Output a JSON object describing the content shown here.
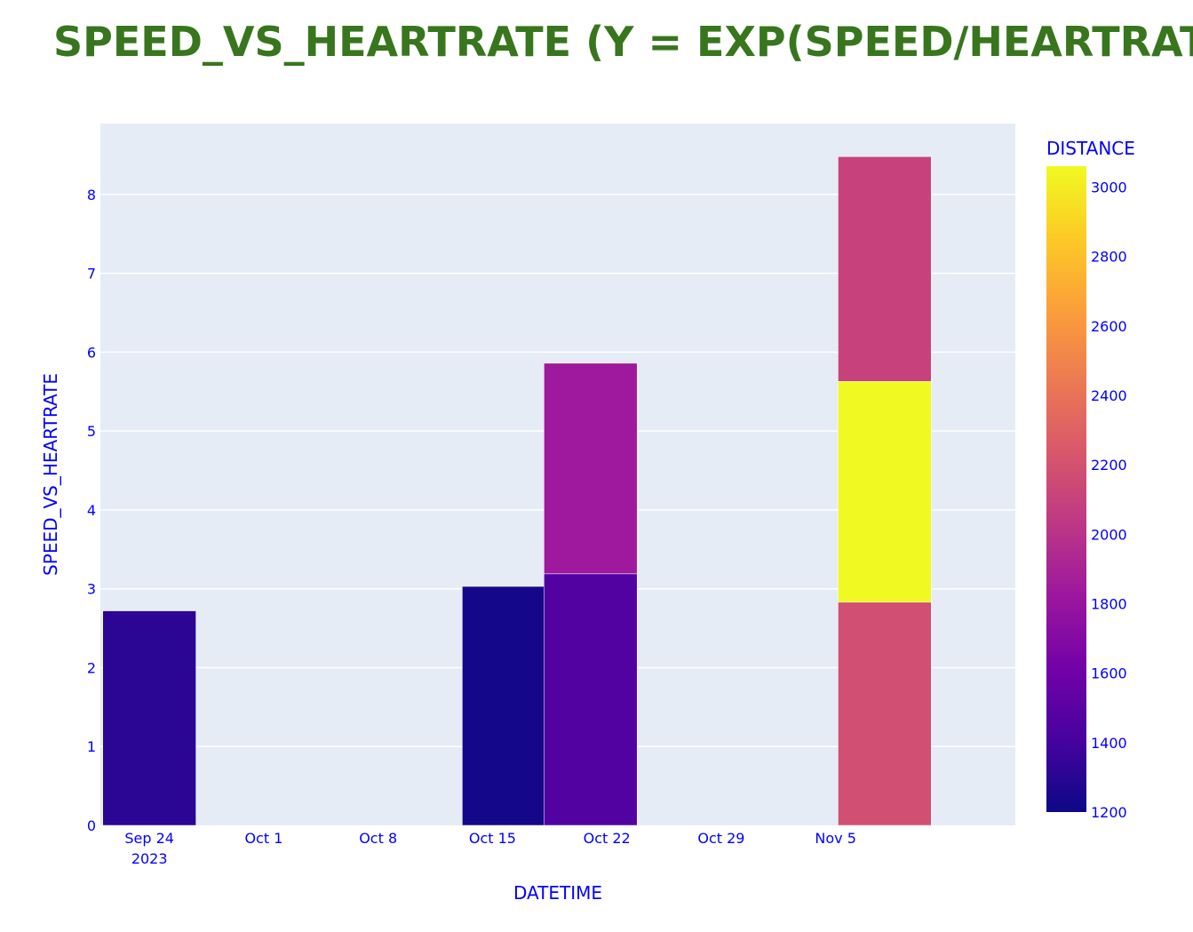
{
  "chart_data": {
    "type": "bar",
    "barmode": "stack",
    "title": "SPEED_VS_HEARTRATE (Y = EXP(SPEED/HEARTRATE",
    "xlabel": "DATETIME",
    "ylabel": "SPEED_VS_HEARTRATE",
    "ylim": [
      0,
      8.9
    ],
    "yticks": [
      0,
      1,
      2,
      3,
      4,
      5,
      6,
      7,
      8
    ],
    "xlim": [
      "2023-09-21",
      "2023-11-16"
    ],
    "xticks": [
      {
        "date": "2023-09-24",
        "label": "Sep 24",
        "sublabel": "2023"
      },
      {
        "date": "2023-10-01",
        "label": "Oct 1",
        "sublabel": ""
      },
      {
        "date": "2023-10-08",
        "label": "Oct 8",
        "sublabel": ""
      },
      {
        "date": "2023-10-15",
        "label": "Oct 15",
        "sublabel": ""
      },
      {
        "date": "2023-10-22",
        "label": "Oct 22",
        "sublabel": ""
      },
      {
        "date": "2023-10-29",
        "label": "Oct 29",
        "sublabel": ""
      },
      {
        "date": "2023-11-05",
        "label": "Nov 5",
        "sublabel": ""
      }
    ],
    "bars": [
      {
        "date": "2023-09-24",
        "value": 2.72,
        "distance": 1310
      },
      {
        "date": "2023-10-16",
        "value": 3.03,
        "distance": 1230
      },
      {
        "date": "2023-10-21",
        "value": 3.19,
        "distance": 1470
      },
      {
        "date": "2023-10-21",
        "value": 2.67,
        "distance": 1830
      },
      {
        "date": "2023-11-08",
        "value": 2.83,
        "distance": 2180
      },
      {
        "date": "2023-11-08",
        "value": 2.8,
        "distance": 3060
      },
      {
        "date": "2023-11-08",
        "value": 2.85,
        "distance": 2100
      }
    ],
    "colorbar": {
      "title": "DISTANCE",
      "min": 1200,
      "max": 3060,
      "ticks": [
        1200,
        1400,
        1600,
        1800,
        2000,
        2200,
        2400,
        2600,
        2800,
        3000
      ],
      "colorscale": [
        "#0d0887",
        "#46039f",
        "#7201a8",
        "#9c179e",
        "#bd3786",
        "#d8576b",
        "#ed7953",
        "#fb9f3a",
        "#fdca26",
        "#f0f921"
      ]
    }
  }
}
